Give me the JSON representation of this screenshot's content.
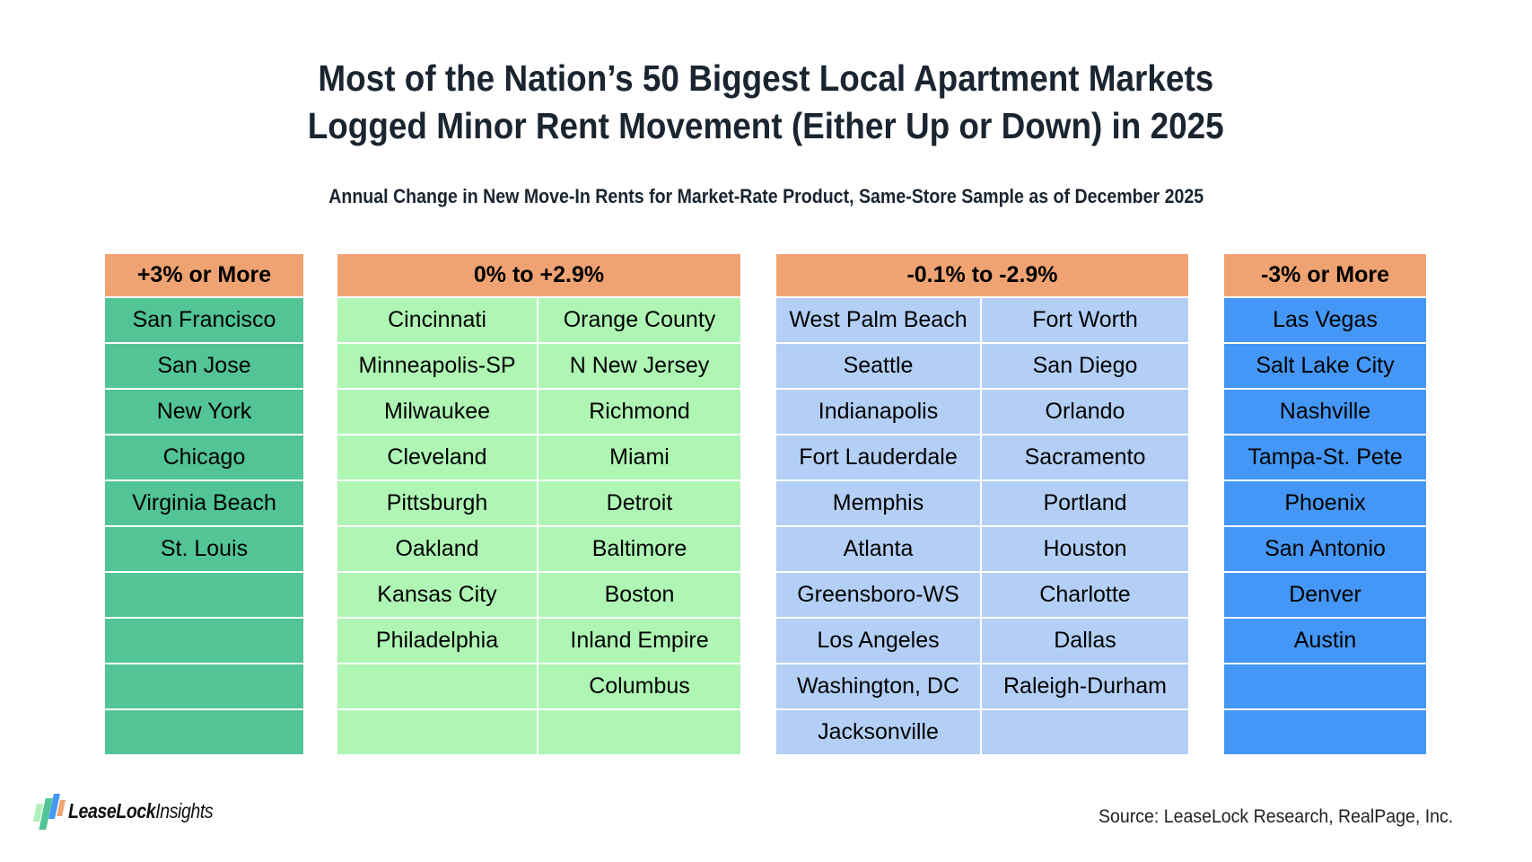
{
  "title": {
    "line1": "Most of the Nation’s 50 Biggest Local Apartment Markets",
    "line2": "Logged Minor Rent Movement (Either Up or Down) in 2025"
  },
  "subtitle": "Annual Change in New Move-In Rents for Market-Rate Product, Same-Store Sample as of December 2025",
  "colors": {
    "header": "#EFA372",
    "plus3_or_more": "#52C496",
    "zero_to_plus2_9": "#AFF6B5",
    "minus0_1_to_minus2_9": "#B3CFF5",
    "minus3_or_more": "#4497F6",
    "title_text": "#1A2530"
  },
  "groups": [
    {
      "header": "+3% or More",
      "rows": [
        [
          "San Francisco"
        ],
        [
          "San Jose"
        ],
        [
          "New York"
        ],
        [
          "Chicago"
        ],
        [
          "Virginia Beach"
        ],
        [
          "St. Louis"
        ],
        [
          ""
        ],
        [
          ""
        ],
        [
          ""
        ],
        [
          ""
        ]
      ]
    },
    {
      "header": "0% to +2.9%",
      "rows": [
        [
          "Cincinnati",
          "Orange County"
        ],
        [
          "Minneapolis-SP",
          "N New Jersey"
        ],
        [
          "Milwaukee",
          "Richmond"
        ],
        [
          "Cleveland",
          "Miami"
        ],
        [
          "Pittsburgh",
          "Detroit"
        ],
        [
          "Oakland",
          "Baltimore"
        ],
        [
          "Kansas City",
          "Boston"
        ],
        [
          "Philadelphia",
          "Inland Empire"
        ],
        [
          "",
          "Columbus"
        ],
        [
          "",
          ""
        ]
      ]
    },
    {
      "header": "-0.1% to -2.9%",
      "rows": [
        [
          "West Palm Beach",
          "Fort Worth"
        ],
        [
          "Seattle",
          "San Diego"
        ],
        [
          "Indianapolis",
          "Orlando"
        ],
        [
          "Fort Lauderdale",
          "Sacramento"
        ],
        [
          "Memphis",
          "Portland"
        ],
        [
          "Atlanta",
          "Houston"
        ],
        [
          "Greensboro-WS",
          "Charlotte"
        ],
        [
          "Los Angeles",
          "Dallas"
        ],
        [
          "Washington, DC",
          "Raleigh-Durham"
        ],
        [
          "Jacksonville",
          ""
        ]
      ]
    },
    {
      "header": "-3% or More",
      "rows": [
        [
          "Las Vegas"
        ],
        [
          "Salt Lake City"
        ],
        [
          "Nashville"
        ],
        [
          "Tampa-St. Pete"
        ],
        [
          "Phoenix"
        ],
        [
          "San Antonio"
        ],
        [
          "Denver"
        ],
        [
          "Austin"
        ],
        [
          ""
        ],
        [
          ""
        ]
      ]
    }
  ],
  "logo": {
    "icon": "leaselock-bars-icon",
    "brand": "LeaseLock",
    "suffix": "Insights"
  },
  "source": "Source: LeaseLock Research, RealPage, Inc."
}
